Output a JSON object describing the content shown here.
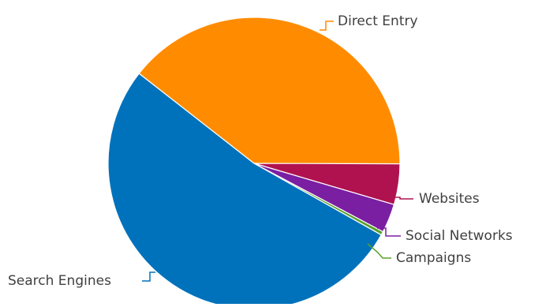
{
  "chart_data": {
    "type": "pie",
    "title": "",
    "slices": [
      {
        "label": "Direct Entry",
        "value": 39.5,
        "color": "#ff8c00"
      },
      {
        "label": "Websites",
        "value": 4.5,
        "color": "#b0124f"
      },
      {
        "label": "Social Networks",
        "value": 3.2,
        "color": "#7a1fa2"
      },
      {
        "label": "Campaigns",
        "value": 0.4,
        "color": "#5aa02c"
      },
      {
        "label": "Search Engines",
        "value": 52.4,
        "color": "#0072bc"
      }
    ],
    "legend": "none",
    "data_labels": "outside with leader lines"
  }
}
